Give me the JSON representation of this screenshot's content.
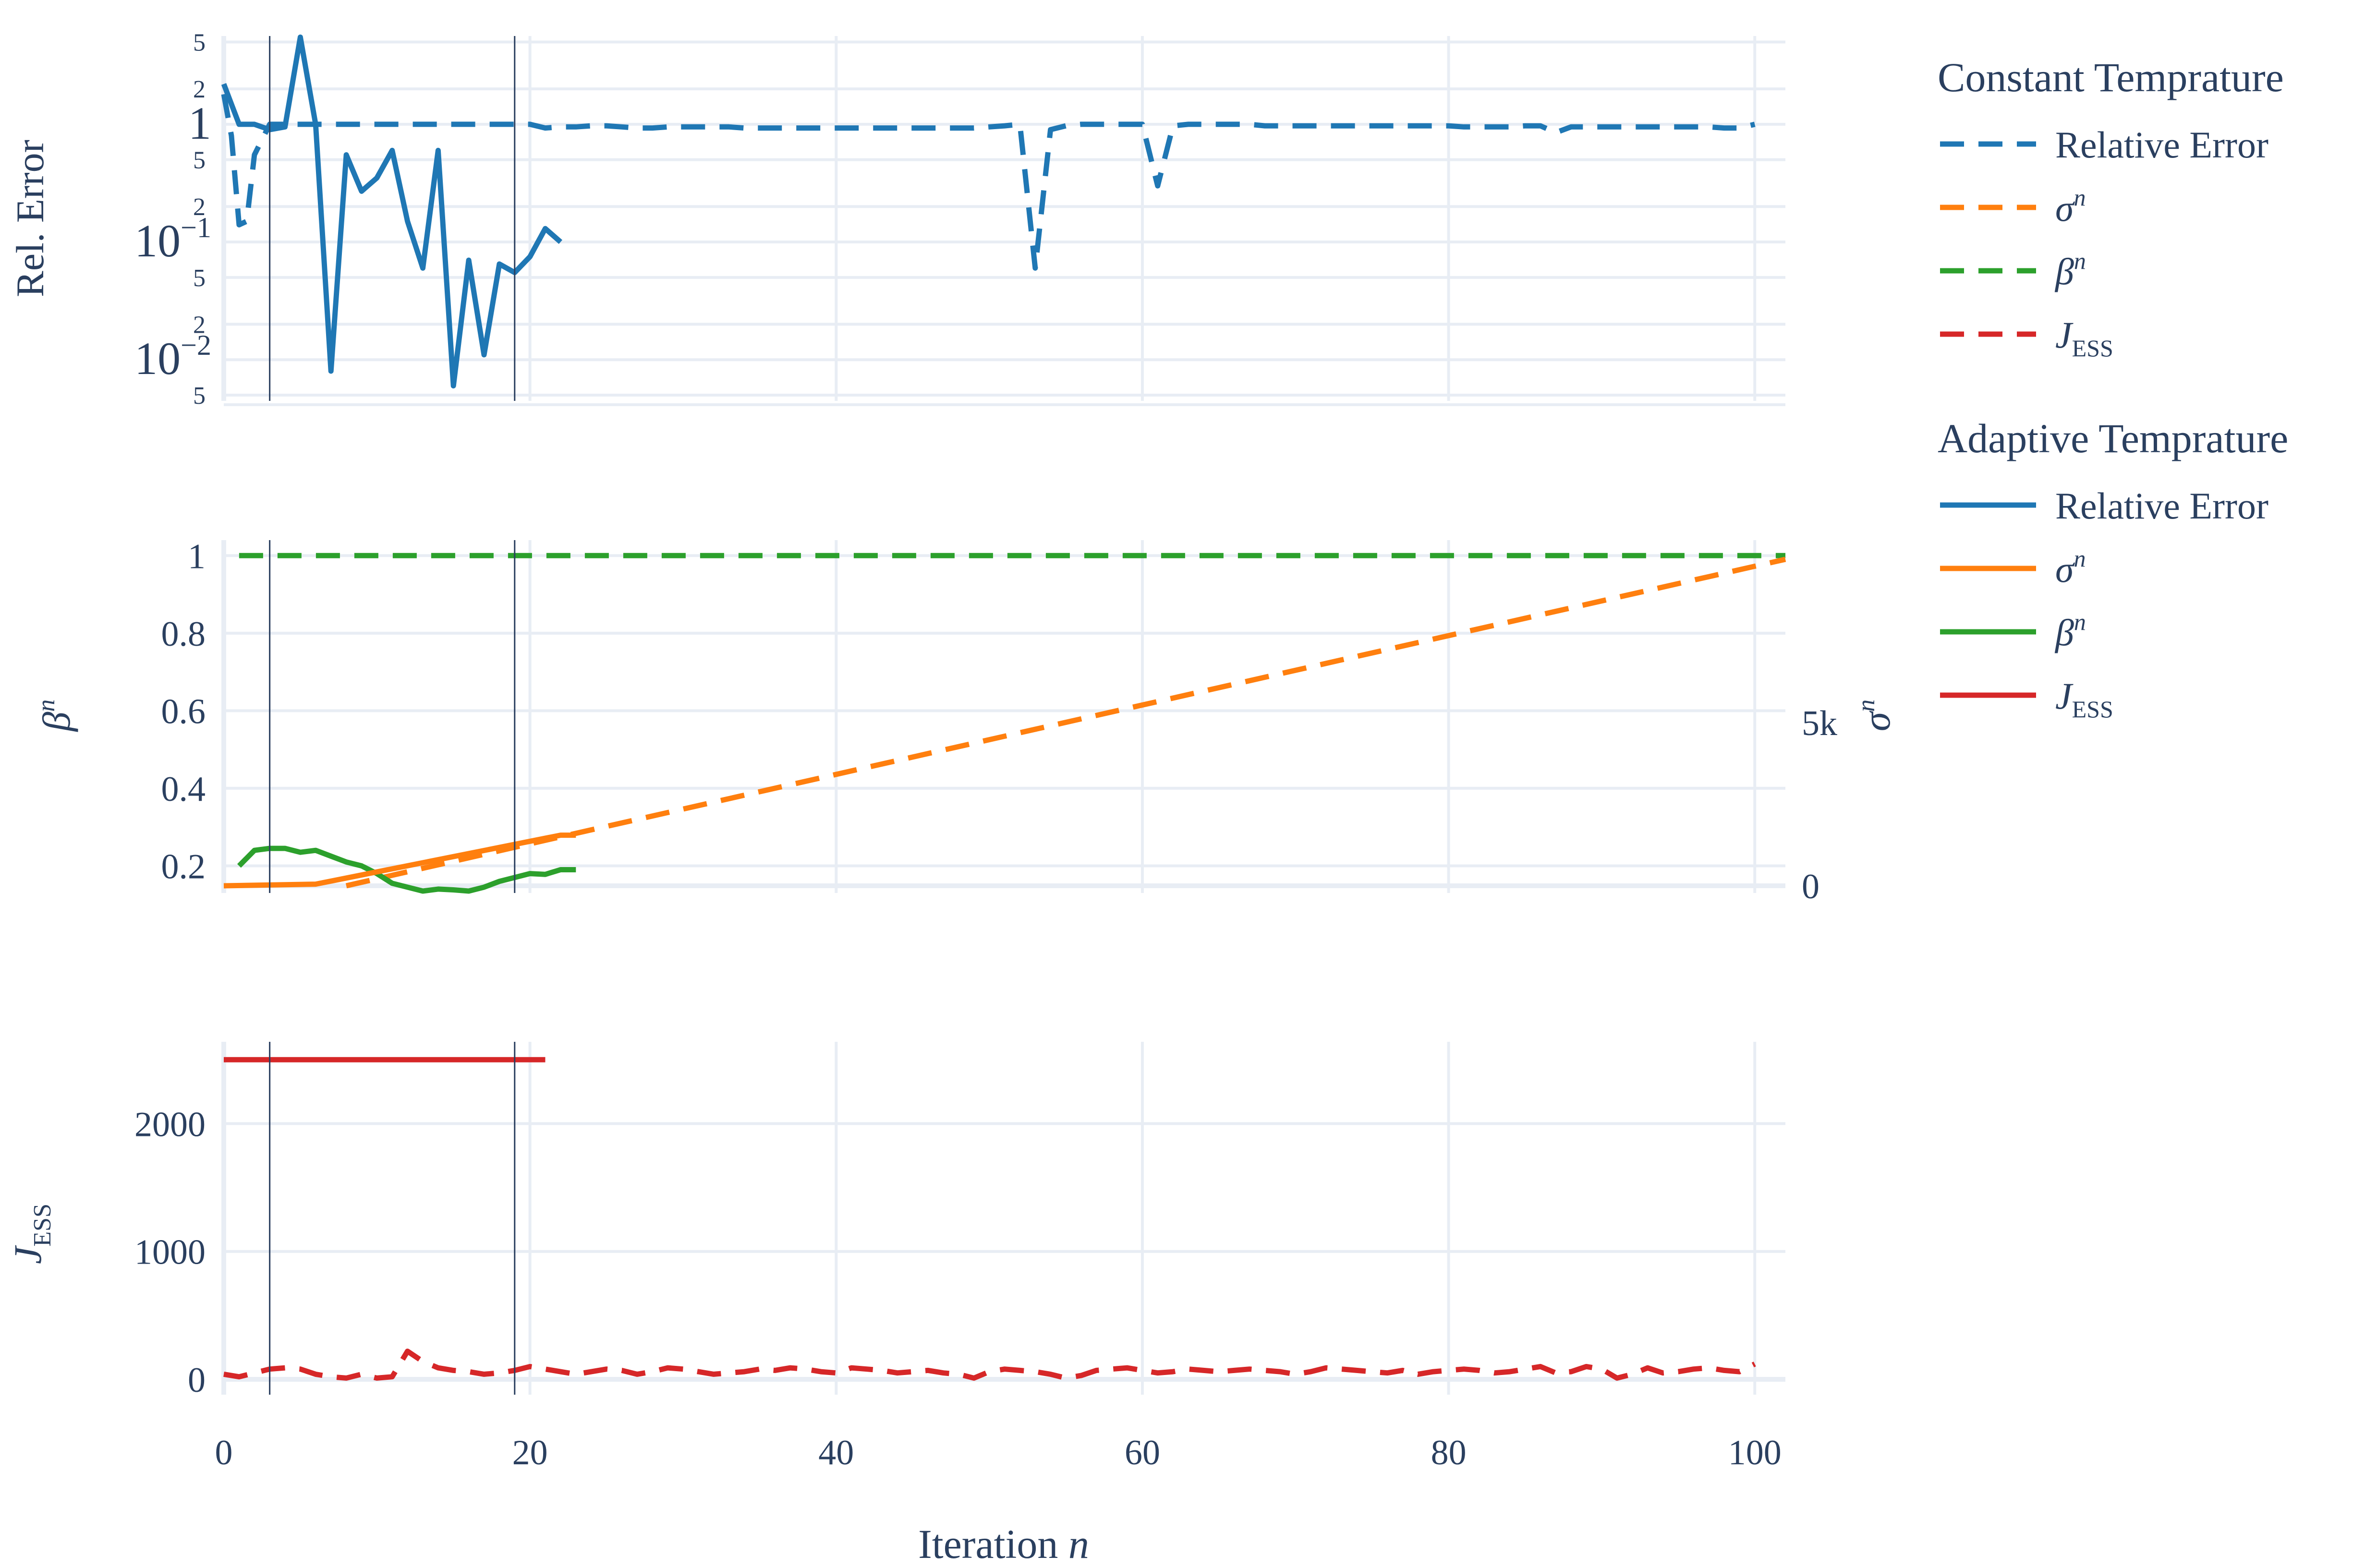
{
  "chart_data": {
    "type": "line",
    "xlabel": "Iteration",
    "xlabel_var": "n",
    "x_ticks": [
      "0",
      "20",
      "40",
      "60",
      "80",
      "100"
    ],
    "xlim": [
      0,
      102
    ],
    "vertical_lines_x": [
      3,
      19
    ],
    "colors": {
      "relerr": "#1f77b4",
      "sigma": "#ff7f0e",
      "beta": "#2ca02c",
      "jess": "#d62728"
    },
    "legend": {
      "placement": "right",
      "groups": [
        {
          "title": "Constant Temprature",
          "style": "dashed",
          "items": [
            "Relative Error",
            "σ",
            "β",
            "J"
          ]
        },
        {
          "title": "Adaptive Temprature",
          "style": "solid",
          "items": [
            "Relative Error",
            "σ",
            "β",
            "J"
          ]
        }
      ],
      "sup": {
        "σ": "n",
        "β": "n"
      },
      "sub": {
        "J": "ESS"
      }
    },
    "panels": {
      "top": {
        "ylabel": "Rel. Error",
        "scale": "log",
        "ylim_log10": [
          -2.35,
          0.75
        ],
        "major_ticks": [
          {
            "value": 1,
            "base": "1",
            "exp": ""
          },
          {
            "value": 0.1,
            "base": "10",
            "exp": "−1"
          },
          {
            "value": 0.01,
            "base": "10",
            "exp": "−2"
          }
        ],
        "minor_ticks": [
          {
            "value": 5,
            "label": "5"
          },
          {
            "value": 2,
            "label": "2"
          },
          {
            "value": 0.5,
            "label": "5"
          },
          {
            "value": 0.2,
            "label": "2"
          },
          {
            "value": 0.05,
            "label": "5"
          },
          {
            "value": 0.02,
            "label": "2"
          },
          {
            "value": 0.005,
            "label": "5"
          }
        ],
        "series": [
          {
            "group": "Constant Temprature",
            "name": "Relative Error",
            "style": "dashed",
            "color": "#1f77b4",
            "x": [
              0,
              0.5,
              1,
              1.5,
              2,
              3,
              4,
              5,
              6,
              7,
              8,
              9,
              10,
              11,
              12,
              13,
              14,
              15,
              16,
              17,
              18,
              19,
              20,
              21,
              22,
              23,
              24,
              25,
              26,
              27,
              28,
              29,
              30,
              31,
              32,
              33,
              34,
              35,
              36,
              37,
              38,
              39,
              40,
              41,
              42,
              43,
              44,
              45,
              46,
              47,
              48,
              49,
              50,
              51,
              52,
              53,
              54,
              55,
              56,
              57,
              58,
              59,
              60,
              61,
              62,
              63,
              64,
              65,
              66,
              67,
              68,
              69,
              70,
              71,
              72,
              73,
              74,
              75,
              76,
              77,
              78,
              79,
              80,
              81,
              82,
              83,
              84,
              85,
              86,
              87,
              88,
              89,
              90,
              91,
              92,
              93,
              94,
              95,
              96,
              97,
              98,
              99,
              100
            ],
            "y": [
              1.8,
              0.8,
              0.14,
              0.15,
              0.55,
              1,
              1,
              1,
              1,
              1,
              1,
              1,
              1,
              1,
              1,
              1,
              1,
              1,
              1,
              1,
              1,
              1,
              1,
              0.93,
              0.95,
              0.95,
              0.97,
              0.97,
              0.95,
              0.93,
              0.93,
              0.95,
              0.95,
              0.95,
              0.95,
              0.95,
              0.93,
              0.93,
              0.93,
              0.93,
              0.93,
              0.93,
              0.93,
              0.93,
              0.93,
              0.93,
              0.93,
              0.93,
              0.93,
              0.93,
              0.93,
              0.93,
              0.95,
              0.97,
              1,
              0.06,
              0.9,
              0.97,
              1,
              1,
              1,
              1,
              1,
              0.3,
              0.97,
              1,
              1,
              1,
              1,
              1,
              0.97,
              0.97,
              0.97,
              0.97,
              0.97,
              0.97,
              0.97,
              0.97,
              0.97,
              0.97,
              0.97,
              0.97,
              0.97,
              0.95,
              0.95,
              0.95,
              0.95,
              0.97,
              0.97,
              0.85,
              0.95,
              0.95,
              0.95,
              0.95,
              0.95,
              0.95,
              0.95,
              0.95,
              0.95,
              0.95,
              0.93,
              0.93,
              1
            ]
          },
          {
            "group": "Adaptive Temprature",
            "name": "Relative Error",
            "style": "solid",
            "color": "#1f77b4",
            "x": [
              0,
              1,
              2,
              3,
              4,
              5,
              6,
              7,
              8,
              9,
              10,
              11,
              12,
              13,
              14,
              15,
              16,
              17,
              18,
              19,
              20,
              21,
              22
            ],
            "y": [
              2.2,
              1,
              1,
              0.9,
              0.95,
              5.5,
              1,
              0.008,
              0.55,
              0.27,
              0.35,
              0.6,
              0.15,
              0.06,
              0.6,
              0.006,
              0.07,
              0.011,
              0.065,
              0.055,
              0.075,
              0.13,
              0.1
            ]
          }
        ]
      },
      "middle": {
        "ylabel": "β",
        "ylabel_sup": "n",
        "ylim": [
          0.13,
          1.04
        ],
        "y_ticks": [
          "0.2",
          "0.4",
          "0.6",
          "0.8",
          "1"
        ],
        "y2label": "σ",
        "y2label_sup": "n",
        "y2lim": [
          0,
          10000
        ],
        "y2_ticks": [
          "0",
          "5k"
        ],
        "series": [
          {
            "group": "Constant Temprature",
            "name": "β",
            "axis": "y",
            "style": "dashed",
            "color": "#2ca02c",
            "x": [
              1,
              102
            ],
            "y": [
              1,
              1
            ]
          },
          {
            "group": "Constant Temprature",
            "name": "σ",
            "axis": "y2",
            "style": "dashed",
            "color": "#ff7f0e",
            "x": [
              8,
              22,
              102
            ],
            "y": [
              0,
              1500,
              10000
            ]
          },
          {
            "group": "Adaptive Temprature",
            "name": "β",
            "axis": "y",
            "style": "solid",
            "color": "#2ca02c",
            "x": [
              1,
              2,
              3,
              4,
              5,
              6,
              7,
              8,
              9,
              10,
              11,
              12,
              13,
              14,
              15,
              16,
              17,
              18,
              19,
              20,
              21,
              22,
              23
            ],
            "y": [
              0.2,
              0.24,
              0.245,
              0.245,
              0.235,
              0.24,
              0.225,
              0.21,
              0.2,
              0.18,
              0.155,
              0.145,
              0.135,
              0.14,
              0.138,
              0.135,
              0.145,
              0.16,
              0.17,
              0.18,
              0.178,
              0.19,
              0.19
            ]
          },
          {
            "group": "Adaptive Temprature",
            "name": "σ",
            "axis": "y2",
            "style": "solid",
            "color": "#ff7f0e",
            "x": [
              0,
              6,
              22,
              23
            ],
            "y": [
              0,
              50,
              1550,
              1550
            ]
          }
        ]
      },
      "bottom": {
        "ylabel": "J",
        "ylabel_sub": "ESS",
        "ylim": [
          -120,
          2640
        ],
        "y_ticks": [
          "0",
          "1000",
          "2000"
        ],
        "series": [
          {
            "group": "Adaptive Temprature",
            "name": "J",
            "style": "solid",
            "color": "#d62728",
            "x": [
              0,
              21
            ],
            "y": [
              2500,
              2500
            ]
          },
          {
            "group": "Constant Temprature",
            "name": "J",
            "style": "dashed",
            "color": "#d62728",
            "x": [
              0,
              1,
              2,
              3,
              4,
              5,
              6,
              7,
              8,
              9,
              10,
              11,
              12,
              13,
              14,
              15,
              16,
              17,
              18,
              19,
              20,
              21,
              22,
              23,
              24,
              25,
              26,
              27,
              28,
              29,
              30,
              31,
              32,
              33,
              34,
              35,
              36,
              37,
              38,
              39,
              40,
              41,
              42,
              43,
              44,
              45,
              46,
              47,
              48,
              49,
              50,
              51,
              52,
              53,
              54,
              55,
              56,
              57,
              58,
              59,
              60,
              61,
              62,
              63,
              64,
              65,
              66,
              67,
              68,
              69,
              70,
              71,
              72,
              73,
              74,
              75,
              76,
              77,
              78,
              79,
              80,
              81,
              82,
              83,
              84,
              85,
              86,
              87,
              88,
              89,
              90,
              91,
              92,
              93,
              94,
              95,
              96,
              97,
              98,
              99,
              100
            ],
            "y": [
              40,
              20,
              50,
              80,
              90,
              80,
              40,
              20,
              10,
              40,
              10,
              20,
              220,
              140,
              90,
              70,
              60,
              40,
              50,
              70,
              100,
              80,
              60,
              40,
              60,
              80,
              70,
              40,
              60,
              90,
              80,
              60,
              40,
              50,
              60,
              80,
              70,
              90,
              80,
              60,
              50,
              90,
              80,
              70,
              50,
              60,
              70,
              50,
              40,
              10,
              60,
              80,
              70,
              60,
              40,
              10,
              30,
              70,
              80,
              90,
              70,
              50,
              60,
              80,
              70,
              60,
              70,
              80,
              70,
              60,
              40,
              60,
              90,
              80,
              70,
              60,
              50,
              70,
              40,
              60,
              70,
              80,
              70,
              50,
              60,
              80,
              100,
              50,
              60,
              100,
              80,
              10,
              40,
              90,
              50,
              60,
              80,
              90,
              70,
              60,
              120
            ]
          }
        ]
      }
    }
  }
}
